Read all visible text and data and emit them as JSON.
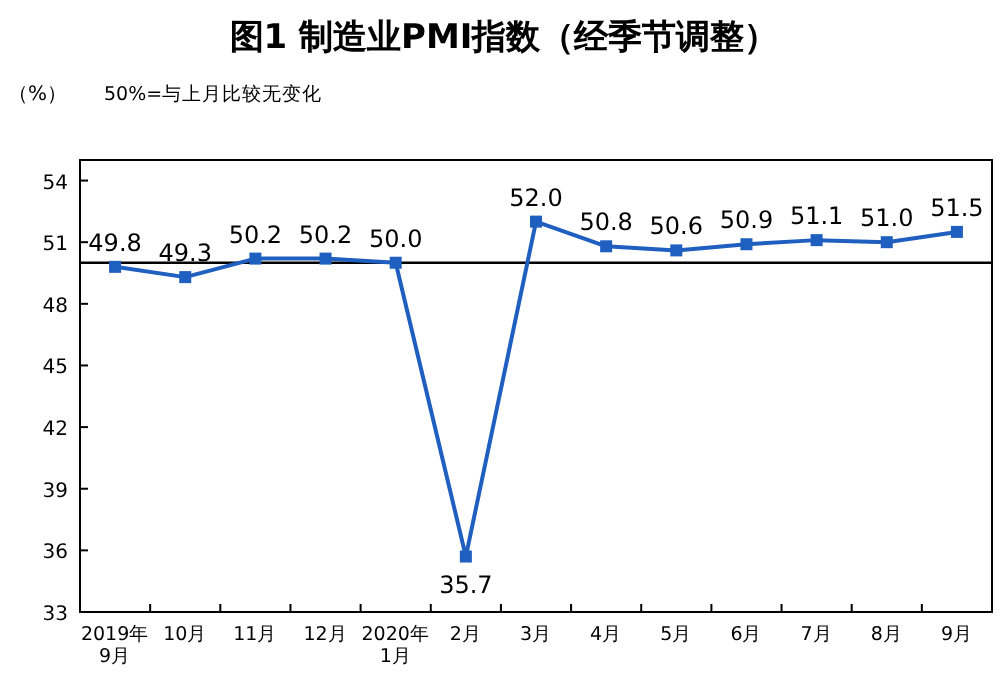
{
  "chart_data": {
    "type": "line",
    "title": "图1  制造业PMI指数（经季节调整）",
    "ylabel": "（%）",
    "categories": [
      "2019年\n9月",
      "10月",
      "11月",
      "12月",
      "2020年\n1月",
      "2月",
      "3月",
      "4月",
      "5月",
      "6月",
      "7月",
      "8月",
      "9月"
    ],
    "series": [
      {
        "color": "#1f5fbf",
        "values": [
          49.8,
          49.3,
          50.2,
          50.2,
          50.0,
          35.7,
          52.0,
          50.8,
          50.6,
          50.9,
          51.1,
          51.0,
          51.5
        ],
        "value_labels": [
          "49.8",
          "49.3",
          "50.2",
          "50.2",
          "50.0",
          "35.7",
          "52.0",
          "50.8",
          "50.6",
          "50.9",
          "51.1",
          "51.0",
          "51.5"
        ]
      }
    ],
    "ylim": [
      33,
      55
    ],
    "yticks": [
      33,
      36,
      39,
      42,
      45,
      48,
      51,
      54
    ],
    "ref_lines": [
      {
        "axis": "y",
        "value": 50,
        "label": "50%=与上月比较无变化",
        "color": "#000000"
      }
    ],
    "marker": "square"
  }
}
